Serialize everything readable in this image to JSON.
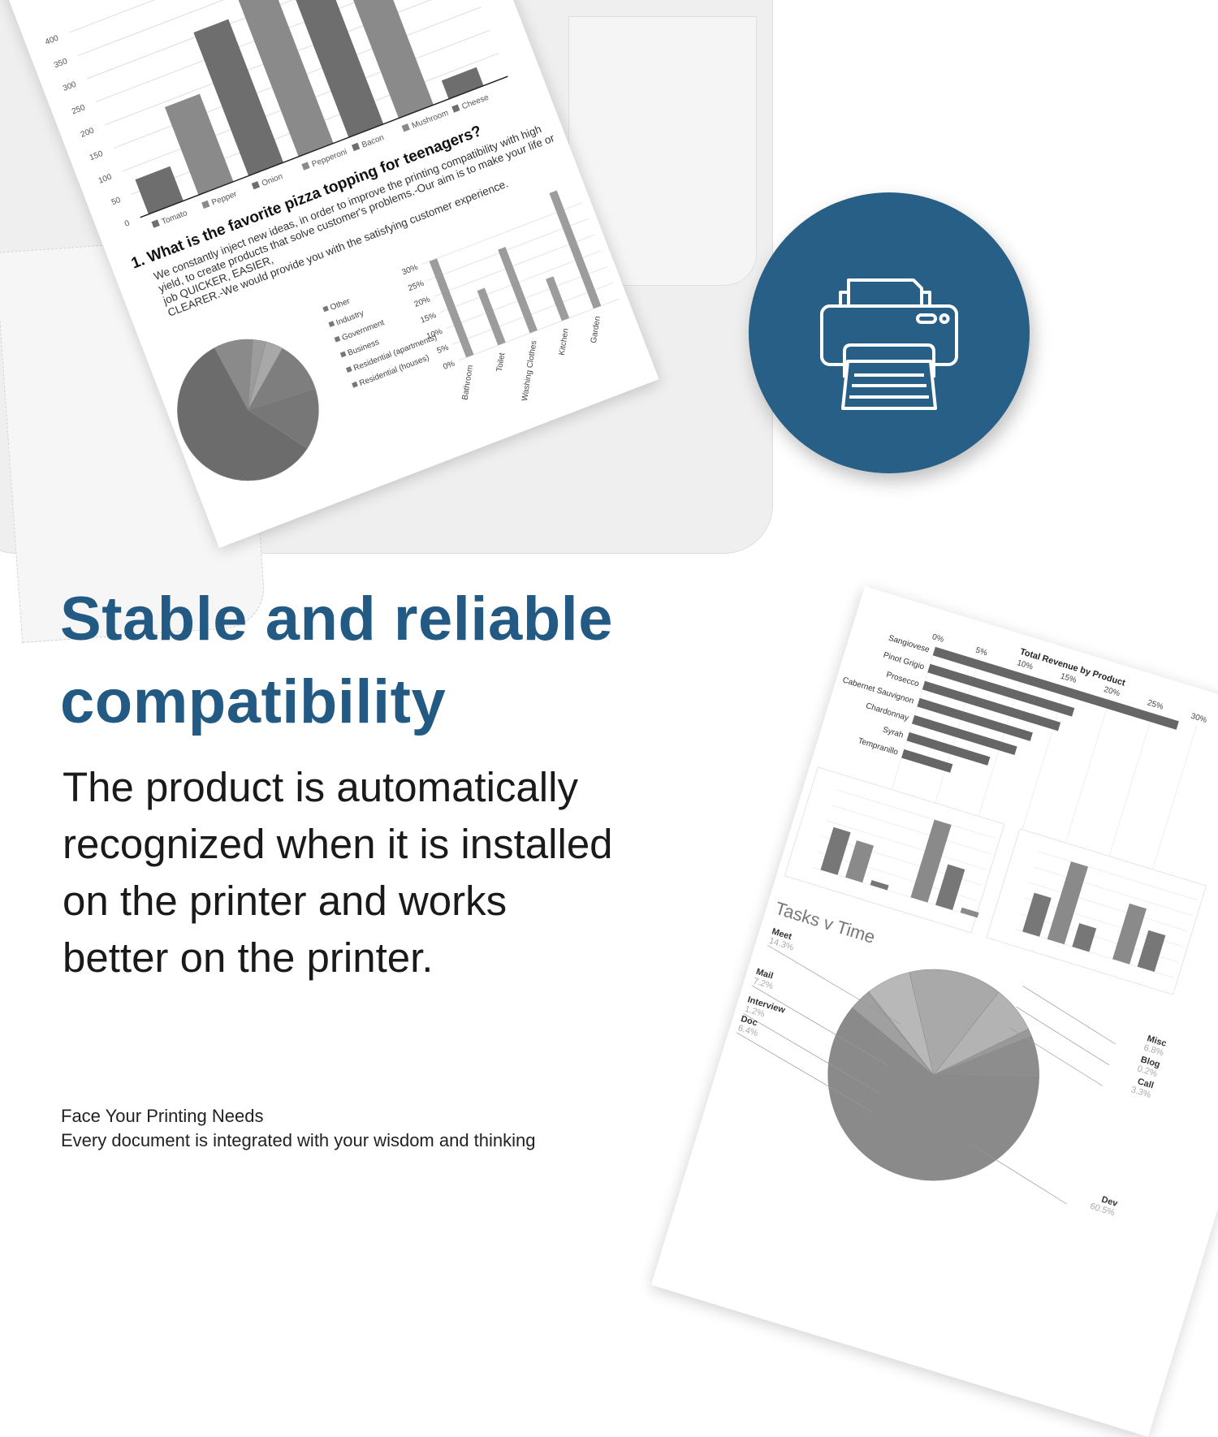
{
  "colors": {
    "brand_blue": "#235a84",
    "circle_blue": "#285f86",
    "bar_dark": "#6f6f6f",
    "bar_light": "#9a9a9a"
  },
  "icon": "printer-icon",
  "headline": [
    "Stable and reliable",
    "compatibility"
  ],
  "body": [
    "The product is automatically",
    "recognized when it is installed",
    "on the printer and works",
    "better on the printer."
  ],
  "footer": {
    "line1": "Face Your Printing Needs",
    "line2": "Every document is integrated with your wisdom and thinking"
  },
  "paper_left": {
    "topping_chart": {
      "type": "bar",
      "categories": [
        "Tomato",
        "Pepper",
        "Onion",
        "Pepperoni",
        "Bacon",
        "Mushroom",
        "Cheese"
      ],
      "values": [
        75,
        190,
        310,
        520,
        330,
        520,
        40
      ],
      "yticks": [
        "0",
        "50",
        "100",
        "150",
        "200",
        "250",
        "300",
        "350",
        "400"
      ]
    },
    "question": "1.  What is the favorite pizza topping for teenagers?",
    "paragraph": [
      "We constantly inject new ideas, in order to improve the printing compatibility with high",
      "yield, to create products that solve customer's problems.-Our aim is to make your life or",
      "job QUICKER, EASIER,",
      "CLEARER.-We would provide you with the satisfying customer experience."
    ],
    "sector_pie": {
      "type": "pie",
      "labels": [
        "Other",
        "Industry",
        "Government",
        "Business",
        "Residential (apartments)",
        "Residential (houses)"
      ],
      "values": [
        9,
        3,
        4,
        12,
        14,
        58
      ]
    },
    "room_chart": {
      "type": "bar",
      "categories": [
        "Bathroom",
        "Toilet",
        "Washing Clothes",
        "Kitchen",
        "Garden"
      ],
      "values": [
        30,
        17,
        26,
        13,
        36
      ],
      "yticks": [
        "0%",
        "5%",
        "10%",
        "15%",
        "20%",
        "25%",
        "30%"
      ]
    }
  },
  "paper_right": {
    "revenue_chart": {
      "type": "bar",
      "title": "Total Revenue by Product",
      "categories": [
        "Sangiovese",
        "Pinot Grigio",
        "Prosecco",
        "Cabernet Sauvignon",
        "Chardonnay",
        "Syrah",
        "Tempranillo"
      ],
      "values": [
        28,
        16.6,
        15.6,
        13,
        11.8,
        9.3,
        5.6
      ],
      "xticks": [
        "0%",
        "5%",
        "10%",
        "15%",
        "20%",
        "25%",
        "30%"
      ]
    },
    "inference_chart_1": {
      "type": "bar",
      "values": [
        11158,
        9663,
        1272,
        20300,
        10631,
        1317
      ]
    },
    "inference_chart_2": {
      "type": "bar",
      "values": [
        463,
        927,
        281,
        663,
        435
      ]
    },
    "tasks_pie": {
      "type": "pie",
      "title": "Tasks v Time",
      "slices": [
        {
          "label": "Meet",
          "value": "14.3%"
        },
        {
          "label": "Mail",
          "value": "7.2%"
        },
        {
          "label": "Interview",
          "value": "1.2%"
        },
        {
          "label": "Doc",
          "value": "6.4%"
        },
        {
          "label": "Dev",
          "value": "60.5%"
        },
        {
          "label": "Call",
          "value": "3.3%"
        },
        {
          "label": "Blog",
          "value": "0.2%"
        },
        {
          "label": "Misc",
          "value": "6.8%"
        }
      ]
    }
  }
}
